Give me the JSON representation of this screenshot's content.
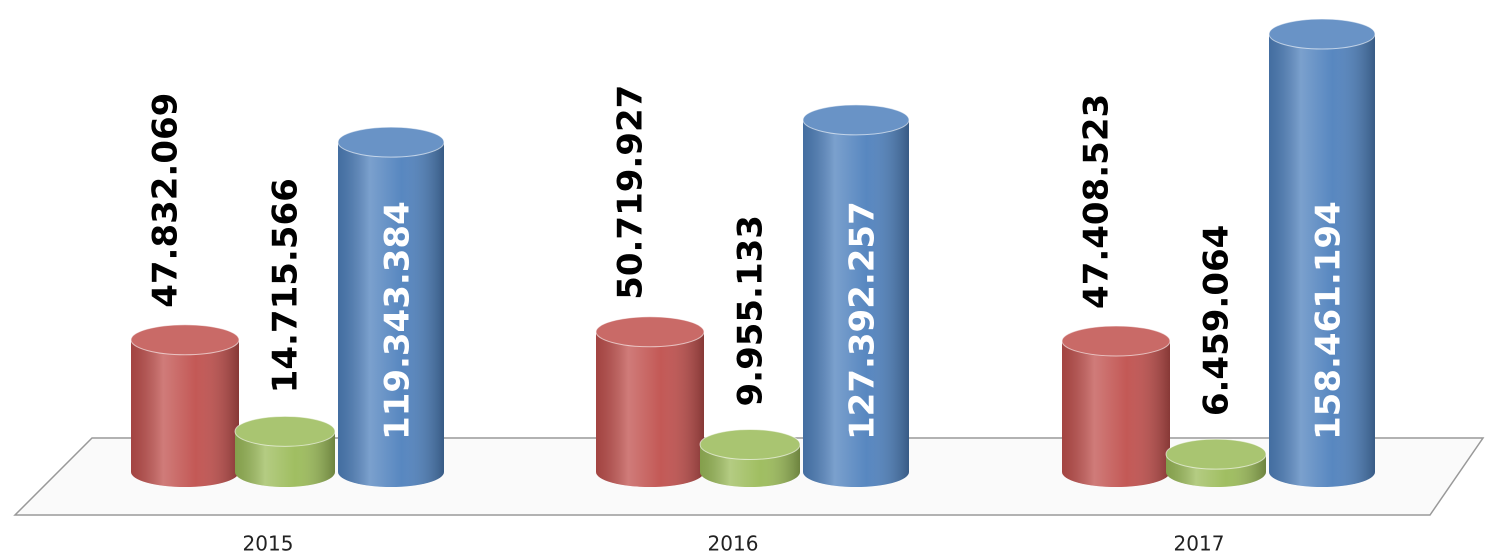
{
  "chart_data": {
    "type": "bar3d",
    "categories": [
      "2015",
      "2016",
      "2017"
    ],
    "series": [
      {
        "color": "#c0504d",
        "values": [
          47832069,
          50719927,
          47408523
        ],
        "value_labels": [
          "47.832.069",
          "50.719.927",
          "47.408.523"
        ]
      },
      {
        "color": "#9bbb59",
        "values": [
          14715566,
          9955133,
          6459064
        ],
        "value_labels": [
          "14.715.566",
          "9.955.133",
          "6.459.064"
        ]
      },
      {
        "color": "#4f81bd",
        "values": [
          119343384,
          127392257,
          158461194
        ],
        "value_labels": [
          "119.343.384",
          "127.392.257",
          "158.461.194"
        ]
      }
    ]
  }
}
